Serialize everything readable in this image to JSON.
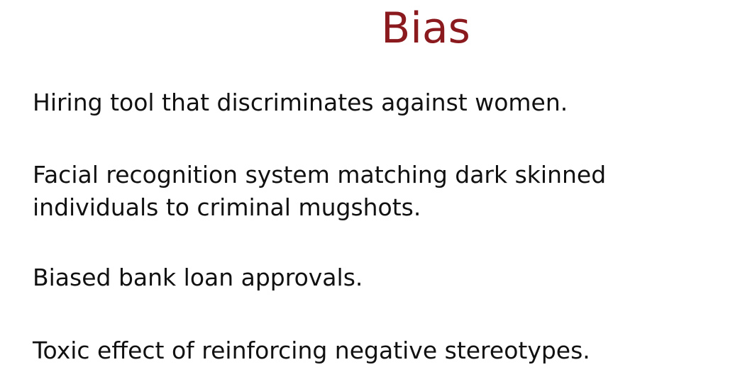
{
  "slide": {
    "title": "Bias",
    "title_color": "#8b1a1f",
    "bullets": [
      "Hiring tool that discriminates against women.",
      "Facial recognition system matching dark skinned individuals to criminal mugshots.",
      "Biased bank loan approvals.",
      "Toxic effect of reinforcing negative stereotypes."
    ]
  }
}
